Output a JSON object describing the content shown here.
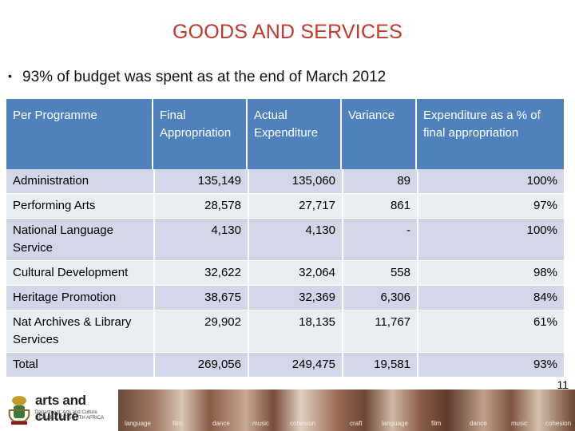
{
  "title": "GOODS AND SERVICES",
  "bullet": "93% of budget was spent as at the end of March 2012",
  "table": {
    "headers": [
      "Per Programme",
      "Final Appropriation",
      "Actual Expenditure",
      "Variance",
      "Expenditure as a % of final appropriation"
    ],
    "rows": [
      [
        "Administration",
        "135,149",
        "135,060",
        "89",
        "100%"
      ],
      [
        "Performing Arts",
        "28,578",
        "27,717",
        "861",
        "97%"
      ],
      [
        "National Language Service",
        "4,130",
        "4,130",
        "-",
        "100%"
      ],
      [
        "Cultural Development",
        "32,622",
        "32,064",
        "558",
        "98%"
      ],
      [
        "Heritage Promotion",
        "38,675",
        "32,369",
        "6,306",
        "84%"
      ],
      [
        "Nat Archives & Library Services",
        "29,902",
        "18,135",
        "11,767",
        "61%"
      ],
      [
        "Total",
        "269,056",
        "249,475",
        "19,581",
        "93%"
      ]
    ]
  },
  "page_number": "11",
  "footer": {
    "brand": "arts and culture",
    "dept": "Department: Arts and Culture REPUBLIC OF SOUTH AFRICA",
    "strip_labels": [
      "language",
      "film",
      "dance",
      "music",
      "cohesion",
      "craft",
      "language",
      "film",
      "dance",
      "music",
      "cohesion"
    ]
  },
  "colors": {
    "title": "#c0392b",
    "header_bg": "#4f81bd",
    "row_odd": "#d0d8e8",
    "row_even": "#e9edf4"
  }
}
